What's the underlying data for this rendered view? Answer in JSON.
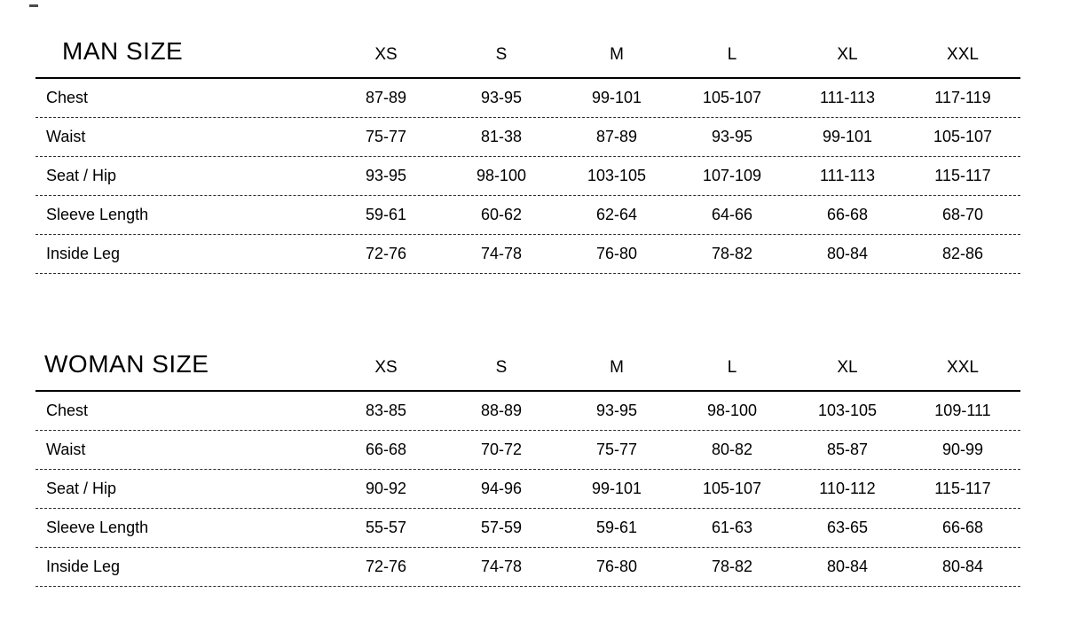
{
  "style": {
    "background": "#ffffff",
    "text_color": "#000000",
    "header_rule_color": "#000000",
    "row_rule_color": "#2b2b2b"
  },
  "tables": [
    {
      "title": "MAN SIZE",
      "columns": [
        "XS",
        "S",
        "M",
        "L",
        "XL",
        "XXL"
      ],
      "rows": [
        {
          "label": "Chest",
          "values": [
            "87-89",
            "93-95",
            "99-101",
            "105-107",
            "111-113",
            "117-119"
          ]
        },
        {
          "label": "Waist",
          "values": [
            "75-77",
            "81-38",
            "87-89",
            "93-95",
            "99-101",
            "105-107"
          ]
        },
        {
          "label": "Seat / Hip",
          "values": [
            "93-95",
            "98-100",
            "103-105",
            "107-109",
            "111-113",
            "115-117"
          ]
        },
        {
          "label": "Sleeve Length",
          "values": [
            "59-61",
            "60-62",
            "62-64",
            "64-66",
            "66-68",
            "68-70"
          ]
        },
        {
          "label": "Inside Leg",
          "values": [
            "72-76",
            "74-78",
            "76-80",
            "78-82",
            "80-84",
            "82-86"
          ]
        }
      ]
    },
    {
      "title": "WOMAN SIZE",
      "columns": [
        "XS",
        "S",
        "M",
        "L",
        "XL",
        "XXL"
      ],
      "rows": [
        {
          "label": "Chest",
          "values": [
            "83-85",
            "88-89",
            "93-95",
            "98-100",
            "103-105",
            "109-111"
          ]
        },
        {
          "label": "Waist",
          "values": [
            "66-68",
            "70-72",
            "75-77",
            "80-82",
            "85-87",
            "90-99"
          ]
        },
        {
          "label": "Seat / Hip",
          "values": [
            "90-92",
            "94-96",
            "99-101",
            "105-107",
            "110-112",
            "115-117"
          ]
        },
        {
          "label": "Sleeve Length",
          "values": [
            "55-57",
            "57-59",
            "59-61",
            "61-63",
            "63-65",
            "66-68"
          ]
        },
        {
          "label": "Inside Leg",
          "values": [
            "72-76",
            "74-78",
            "76-80",
            "78-82",
            "80-84",
            "80-84"
          ]
        }
      ]
    }
  ]
}
